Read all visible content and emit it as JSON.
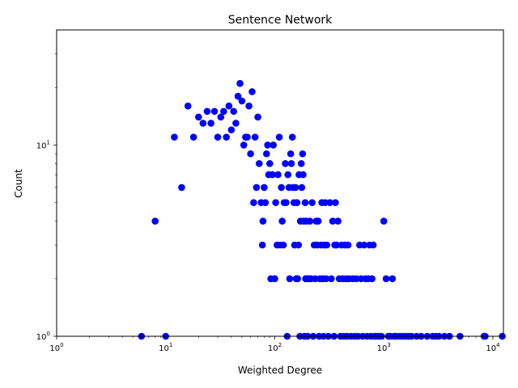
{
  "chart_data": {
    "type": "scatter",
    "title": "Sentence Network",
    "xlabel": "Weighted Degree",
    "ylabel": "Count",
    "xscale": "log",
    "yscale": "log",
    "xlim": [
      1,
      12500
    ],
    "ylim": [
      1,
      40
    ],
    "x_ticks": [
      {
        "value": 1,
        "label": "10",
        "exp": "0"
      },
      {
        "value": 10,
        "label": "10",
        "exp": "1"
      },
      {
        "value": 100,
        "label": "10",
        "exp": "2"
      },
      {
        "value": 1000,
        "label": "10",
        "exp": "3"
      },
      {
        "value": 10000,
        "label": "10",
        "exp": "4"
      }
    ],
    "y_ticks": [
      {
        "value": 1,
        "label": "10",
        "exp": "0"
      },
      {
        "value": 10,
        "label": "10",
        "exp": "1"
      }
    ],
    "grid": false,
    "marker_color": "#0000ff",
    "points": [
      [
        6,
        1
      ],
      [
        10,
        1
      ],
      [
        8,
        4
      ],
      [
        14,
        6
      ],
      [
        12,
        11
      ],
      [
        16,
        16
      ],
      [
        18,
        11
      ],
      [
        20,
        14
      ],
      [
        22,
        13
      ],
      [
        24,
        15
      ],
      [
        26,
        13
      ],
      [
        28,
        15
      ],
      [
        30,
        11
      ],
      [
        32,
        14
      ],
      [
        34,
        15
      ],
      [
        36,
        11
      ],
      [
        38,
        16
      ],
      [
        40,
        12
      ],
      [
        42,
        15
      ],
      [
        44,
        13
      ],
      [
        46,
        18
      ],
      [
        48,
        21
      ],
      [
        50,
        17
      ],
      [
        52,
        10
      ],
      [
        54,
        11
      ],
      [
        56,
        11
      ],
      [
        58,
        16
      ],
      [
        60,
        9
      ],
      [
        62,
        19
      ],
      [
        64,
        5
      ],
      [
        66,
        11
      ],
      [
        68,
        6
      ],
      [
        70,
        14
      ],
      [
        72,
        8
      ],
      [
        75,
        5
      ],
      [
        77,
        3
      ],
      [
        78,
        4
      ],
      [
        80,
        6
      ],
      [
        82,
        5
      ],
      [
        84,
        9
      ],
      [
        86,
        10
      ],
      [
        88,
        7
      ],
      [
        90,
        8
      ],
      [
        92,
        2
      ],
      [
        95,
        7
      ],
      [
        97,
        10
      ],
      [
        100,
        2
      ],
      [
        102,
        5
      ],
      [
        105,
        3
      ],
      [
        107,
        7
      ],
      [
        110,
        11
      ],
      [
        112,
        3
      ],
      [
        115,
        6
      ],
      [
        117,
        4
      ],
      [
        120,
        3
      ],
      [
        122,
        5
      ],
      [
        125,
        8
      ],
      [
        127,
        5
      ],
      [
        130,
        1
      ],
      [
        132,
        7
      ],
      [
        135,
        6
      ],
      [
        137,
        2
      ],
      [
        140,
        9
      ],
      [
        142,
        8
      ],
      [
        145,
        11
      ],
      [
        147,
        6
      ],
      [
        150,
        5
      ],
      [
        152,
        3
      ],
      [
        155,
        6
      ],
      [
        157,
        2
      ],
      [
        160,
        5
      ],
      [
        162,
        2
      ],
      [
        165,
        3
      ],
      [
        167,
        7
      ],
      [
        170,
        1
      ],
      [
        172,
        4
      ],
      [
        175,
        8
      ],
      [
        177,
        6
      ],
      [
        180,
        9
      ],
      [
        182,
        7
      ],
      [
        185,
        4
      ],
      [
        187,
        1
      ],
      [
        190,
        5
      ],
      [
        192,
        2
      ],
      [
        195,
        4
      ],
      [
        197,
        2
      ],
      [
        200,
        1
      ],
      [
        205,
        2
      ],
      [
        210,
        4
      ],
      [
        215,
        2
      ],
      [
        220,
        5
      ],
      [
        225,
        1
      ],
      [
        230,
        3
      ],
      [
        235,
        2
      ],
      [
        240,
        4
      ],
      [
        245,
        3
      ],
      [
        250,
        4
      ],
      [
        255,
        1
      ],
      [
        260,
        2
      ],
      [
        265,
        3
      ],
      [
        270,
        5
      ],
      [
        275,
        2
      ],
      [
        280,
        1
      ],
      [
        285,
        3
      ],
      [
        290,
        5
      ],
      [
        295,
        2
      ],
      [
        300,
        3
      ],
      [
        310,
        1
      ],
      [
        320,
        5
      ],
      [
        330,
        2
      ],
      [
        340,
        4
      ],
      [
        350,
        1
      ],
      [
        355,
        3
      ],
      [
        360,
        5
      ],
      [
        370,
        3
      ],
      [
        380,
        4
      ],
      [
        390,
        2
      ],
      [
        400,
        1
      ],
      [
        410,
        3
      ],
      [
        420,
        2
      ],
      [
        430,
        1
      ],
      [
        440,
        3
      ],
      [
        450,
        2
      ],
      [
        460,
        1
      ],
      [
        470,
        3
      ],
      [
        480,
        2
      ],
      [
        500,
        1
      ],
      [
        520,
        2
      ],
      [
        540,
        1
      ],
      [
        560,
        2
      ],
      [
        580,
        1
      ],
      [
        600,
        3
      ],
      [
        620,
        2
      ],
      [
        640,
        1
      ],
      [
        660,
        3
      ],
      [
        680,
        2
      ],
      [
        700,
        1
      ],
      [
        720,
        2
      ],
      [
        740,
        3
      ],
      [
        760,
        1
      ],
      [
        780,
        2
      ],
      [
        800,
        3
      ],
      [
        820,
        1
      ],
      [
        850,
        1
      ],
      [
        900,
        1
      ],
      [
        950,
        1
      ],
      [
        1000,
        4
      ],
      [
        1050,
        2
      ],
      [
        1100,
        1
      ],
      [
        1150,
        1
      ],
      [
        1200,
        2
      ],
      [
        1250,
        1
      ],
      [
        1300,
        1
      ],
      [
        1400,
        1
      ],
      [
        1500,
        1
      ],
      [
        1600,
        1
      ],
      [
        1700,
        1
      ],
      [
        1800,
        1
      ],
      [
        2000,
        1
      ],
      [
        2200,
        1
      ],
      [
        2500,
        1
      ],
      [
        2800,
        1
      ],
      [
        3000,
        1
      ],
      [
        3200,
        1
      ],
      [
        3600,
        1
      ],
      [
        4000,
        1
      ],
      [
        5000,
        1
      ],
      [
        8300,
        1
      ],
      [
        8500,
        1
      ],
      [
        12200,
        1
      ]
    ]
  }
}
